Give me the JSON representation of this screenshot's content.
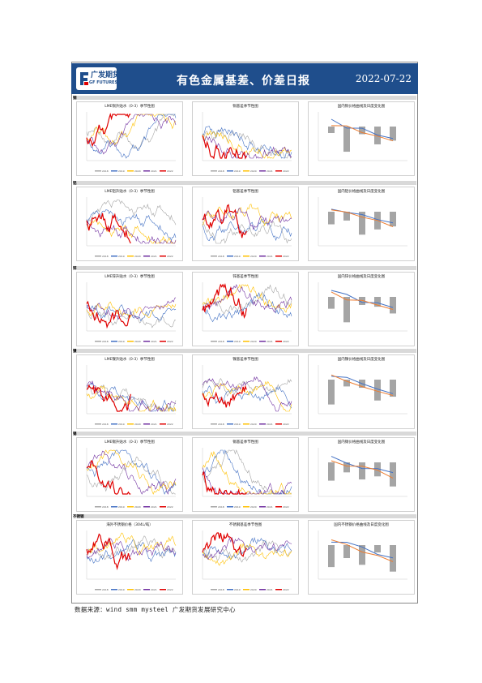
{
  "header": {
    "logo_cn": "广发期货",
    "logo_en": "GF FUTURES",
    "title": "有色金属基差、价差日报",
    "date": "2022-07-22"
  },
  "sections": [
    {
      "label": "铜",
      "panels": [
        "LME铜升贴水（0-3）季节性图",
        "铜基差季节性图",
        "国内铜价格曲线及日度变化图"
      ]
    },
    {
      "label": "铝",
      "panels": [
        "LME铝升贴水（0-3）季节性图",
        "铝基差季节性图",
        "国内铝价格曲线及日度变化图"
      ]
    },
    {
      "label": "锌",
      "panels": [
        "LME锌升贴水（0-3）季节性图",
        "锌基差季节性图",
        "国内锌价格曲线及日度变化图"
      ]
    },
    {
      "label": "镍",
      "panels": [
        "LME镍升贴水（0-3）季节性图",
        "镍基差季节性图",
        "国内镍价格曲线及日度变化图"
      ]
    },
    {
      "label": "锡",
      "panels": [
        "LME锡升贴水（0-3）季节性图",
        "锡基差季节性图",
        "国内锡价格曲线及日度变化图"
      ]
    },
    {
      "label": "不锈钢",
      "panels": [
        "海外不锈钢价格（304L/吨）",
        "不锈钢基差季节性图",
        "国内不锈钢价格曲线及日度变化图"
      ]
    }
  ],
  "legend_years": [
    "2018",
    "2019",
    "2020",
    "2021",
    "2022"
  ],
  "colors": {
    "header": "#1f4e8c",
    "y2018": "#a5a5a5",
    "y2019": "#4472c4",
    "y2020": "#ffc000",
    "y2021": "#7030a0",
    "y2022": "#e00000",
    "curve_today": "#4472c4",
    "curve_prev": "#ed7d31",
    "bar": "#a5a5a5"
  },
  "footer": {
    "source": "数据来源：wind  smm  mysteel  广发期货发展研究中心"
  }
}
